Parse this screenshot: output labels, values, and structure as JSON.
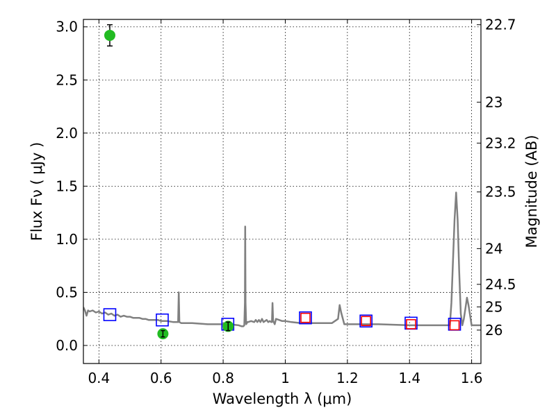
{
  "chart_data": {
    "type": "scatter",
    "xlabel": "Wavelength  λ (μm)",
    "ylabel": "Flux  Fν  ( μJy )",
    "y2label": "Magnitude (AB)",
    "xlim": [
      0.35,
      1.63
    ],
    "ylim": [
      -0.17,
      3.07
    ],
    "grid": true,
    "x_ticks": [
      {
        "value": 0.4,
        "label": "0.4"
      },
      {
        "value": 0.6,
        "label": "0.6"
      },
      {
        "value": 0.8,
        "label": "0.8"
      },
      {
        "value": 1.0,
        "label": "1"
      },
      {
        "value": 1.2,
        "label": "1.2"
      },
      {
        "value": 1.4,
        "label": "1.4"
      },
      {
        "value": 1.6,
        "label": "1.6"
      }
    ],
    "y_ticks": [
      {
        "value": 0.0,
        "label": "0.0"
      },
      {
        "value": 0.5,
        "label": "0.5"
      },
      {
        "value": 1.0,
        "label": "1.0"
      },
      {
        "value": 1.5,
        "label": "1.5"
      },
      {
        "value": 2.0,
        "label": "2.0"
      },
      {
        "value": 2.5,
        "label": "2.5"
      },
      {
        "value": 3.0,
        "label": "3.0"
      }
    ],
    "y2_ticks": [
      {
        "value": 22.7,
        "label": "22.7"
      },
      {
        "value": 23.0,
        "label": "23"
      },
      {
        "value": 23.2,
        "label": "23.2"
      },
      {
        "value": 23.5,
        "label": "23.5"
      },
      {
        "value": 24.0,
        "label": "24"
      },
      {
        "value": 24.5,
        "label": "24.5"
      },
      {
        "value": 25.0,
        "label": "25"
      },
      {
        "value": 26.0,
        "label": "26"
      }
    ],
    "model_spectrum": {
      "color": "#808080",
      "x": [
        0.35,
        0.355,
        0.36,
        0.365,
        0.37,
        0.38,
        0.39,
        0.4,
        0.41,
        0.42,
        0.43,
        0.44,
        0.45,
        0.46,
        0.47,
        0.48,
        0.49,
        0.5,
        0.51,
        0.52,
        0.53,
        0.54,
        0.55,
        0.56,
        0.57,
        0.58,
        0.59,
        0.6,
        0.62,
        0.64,
        0.65,
        0.655,
        0.657,
        0.659,
        0.665,
        0.7,
        0.75,
        0.8,
        0.82,
        0.85,
        0.86,
        0.865,
        0.868,
        0.87,
        0.871,
        0.872,
        0.874,
        0.876,
        0.878,
        0.88,
        0.89,
        0.9,
        0.905,
        0.91,
        0.915,
        0.92,
        0.925,
        0.93,
        0.935,
        0.94,
        0.945,
        0.95,
        0.955,
        0.957,
        0.959,
        0.961,
        0.963,
        0.966,
        0.97,
        0.98,
        0.99,
        1.0,
        1.02,
        1.05,
        1.1,
        1.15,
        1.17,
        1.175,
        1.18,
        1.19,
        1.2,
        1.3,
        1.4,
        1.5,
        1.52,
        1.53,
        1.535,
        1.54,
        1.545,
        1.55,
        1.555,
        1.56,
        1.565,
        1.57,
        1.575,
        1.58,
        1.585,
        1.59,
        1.6,
        1.62,
        1.63
      ],
      "y": [
        0.36,
        0.33,
        0.28,
        0.33,
        0.32,
        0.33,
        0.31,
        0.32,
        0.3,
        0.31,
        0.29,
        0.3,
        0.28,
        0.29,
        0.27,
        0.28,
        0.27,
        0.27,
        0.26,
        0.26,
        0.26,
        0.25,
        0.25,
        0.24,
        0.24,
        0.24,
        0.24,
        0.23,
        0.23,
        0.22,
        0.22,
        0.22,
        0.5,
        0.22,
        0.21,
        0.21,
        0.2,
        0.2,
        0.2,
        0.19,
        0.18,
        0.18,
        0.19,
        0.4,
        1.12,
        0.4,
        0.2,
        0.21,
        0.22,
        0.22,
        0.23,
        0.22,
        0.24,
        0.22,
        0.24,
        0.22,
        0.25,
        0.22,
        0.23,
        0.24,
        0.22,
        0.23,
        0.22,
        0.22,
        0.4,
        0.23,
        0.22,
        0.2,
        0.25,
        0.24,
        0.23,
        0.23,
        0.22,
        0.21,
        0.21,
        0.21,
        0.25,
        0.38,
        0.31,
        0.2,
        0.2,
        0.2,
        0.19,
        0.19,
        0.19,
        0.19,
        0.4,
        0.8,
        1.18,
        1.44,
        1.18,
        0.7,
        0.3,
        0.19,
        0.25,
        0.35,
        0.45,
        0.38,
        0.19,
        0.19,
        0.19
      ]
    },
    "series": [
      {
        "name": "",
        "marker": "square-open",
        "color": "#0000ff",
        "x": [
          0.435,
          0.604,
          0.815,
          1.065,
          1.26,
          1.405,
          1.545
        ],
        "y": [
          0.29,
          0.24,
          0.2,
          0.26,
          0.23,
          0.21,
          0.2
        ]
      },
      {
        "name": "",
        "marker": "square-open",
        "color": "#ff0000",
        "x": [
          1.065,
          1.26,
          1.405,
          1.545
        ],
        "y": [
          0.26,
          0.23,
          0.2,
          0.19
        ]
      },
      {
        "name": "",
        "marker": "circle",
        "color": "#22bb22",
        "x": [
          0.435,
          0.606,
          0.816
        ],
        "y": [
          2.92,
          0.11,
          0.18
        ],
        "yerr": [
          0.1,
          0.03,
          0.04
        ]
      }
    ]
  }
}
